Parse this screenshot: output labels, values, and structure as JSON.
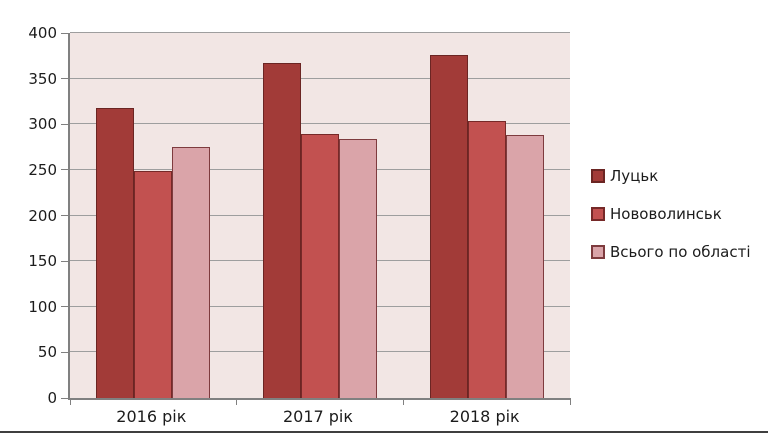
{
  "chart_data": {
    "type": "bar",
    "title": "",
    "xlabel": "",
    "ylabel": "",
    "categories": [
      "2016 рік",
      "2017 рік",
      "2018 рік"
    ],
    "series": [
      {
        "name": "Луцьк",
        "color": "#A23B38",
        "border_color": "#6B2523",
        "values": [
          318,
          367,
          376
        ]
      },
      {
        "name": "Нововолинськ",
        "color": "#C25150",
        "border_color": "#762928",
        "values": [
          249,
          289,
          304
        ]
      },
      {
        "name": "Всього по області",
        "color": "#DAA4A9",
        "border_color": "#7E3B3E",
        "values": [
          275,
          284,
          288
        ]
      }
    ],
    "ylim": [
      0,
      400
    ],
    "yticks": [
      0,
      50,
      100,
      150,
      200,
      250,
      300,
      350,
      400
    ],
    "grid": true,
    "legend_position": "right",
    "plot_background": "#F2E6E4",
    "grid_color": "#9E9E9E",
    "axis_color": "#808080",
    "bottom_rule_color": "#3F3F3F"
  }
}
